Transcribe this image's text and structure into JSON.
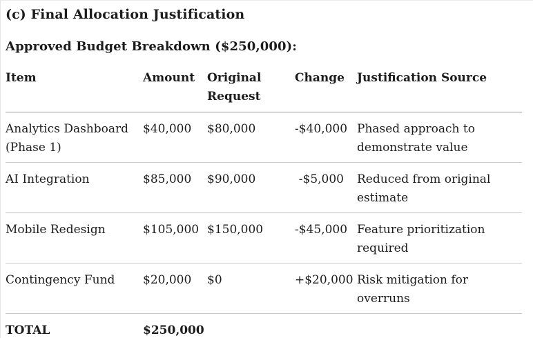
{
  "page": {
    "title": "(c) Final Allocation Justification",
    "subtitle": "Approved Budget Breakdown ($250,000):"
  },
  "table": {
    "columns": [
      "Item",
      "Amount",
      "Original Request",
      "Change",
      "Justification Source"
    ],
    "rows": [
      {
        "item": "Analytics Dashboard (Phase 1)",
        "amount": "$40,000",
        "original_request": "$80,000",
        "change": "-$40,000",
        "justification": "Phased approach to demonstrate value"
      },
      {
        "item": "AI Integration",
        "amount": "$85,000",
        "original_request": "$90,000",
        "change": "-$5,000",
        "justification": "Reduced from original estimate"
      },
      {
        "item": "Mobile Redesign",
        "amount": "$105,000",
        "original_request": "$150,000",
        "change": "-$45,000",
        "justification": "Feature prioritization required"
      },
      {
        "item": "Contingency Fund",
        "amount": "$20,000",
        "original_request": "$0",
        "change": "+$20,000",
        "justification": "Risk mitigation for overruns"
      }
    ],
    "total_row": {
      "label": "TOTAL",
      "amount": "$250,000"
    }
  },
  "colors": {
    "text": "#1c1c1c",
    "header_rule": "#999999",
    "row_rule": "#c9c9c9",
    "background": "#ffffff"
  }
}
